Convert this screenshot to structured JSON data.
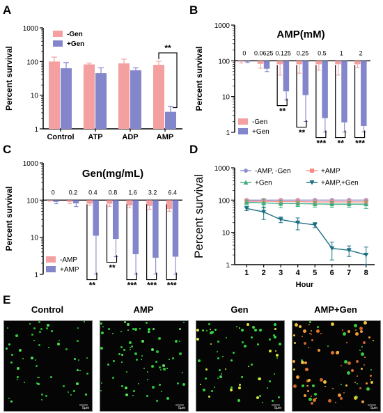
{
  "panel_labels": {
    "a": "A",
    "b": "B",
    "c": "C",
    "d": "D",
    "e": "E"
  },
  "colors": {
    "minus": "#f4a0a0",
    "plus": "#8486cc",
    "teal": "#1b6f83",
    "green": "#3fae7f",
    "lavender": "#8f8fd6",
    "salmon": "#f48a84",
    "axis": "#000000"
  },
  "chart_data": [
    {
      "panel": "A",
      "type": "bar",
      "ylabel": "Percent survival",
      "yscale": "log",
      "ylim": [
        1,
        1000
      ],
      "yticks": [
        "1",
        "10",
        "100",
        "1000"
      ],
      "categories": [
        "Control",
        "ATP",
        "ADP",
        "AMP"
      ],
      "series": [
        {
          "name": "-Gen",
          "values": [
            100,
            82,
            88,
            80
          ],
          "err": [
            35,
            8,
            30,
            22
          ]
        },
        {
          "name": "+Gen",
          "values": [
            63,
            45,
            55,
            3.2
          ],
          "err": [
            30,
            20,
            10,
            1.5
          ]
        }
      ],
      "annotations": [
        {
          "category": "AMP",
          "text": "**"
        }
      ],
      "legend": "top-left"
    },
    {
      "panel": "B",
      "type": "bar",
      "title": "AMP(mM)",
      "ylabel": "Percent survival",
      "yscale": "log",
      "ylim": [
        1,
        1000
      ],
      "yticks": [
        "1",
        "10",
        "100",
        "1000"
      ],
      "categories": [
        "0",
        "0.0625",
        "0.125",
        "0.25",
        "0.5",
        "1",
        "2"
      ],
      "series": [
        {
          "name": "-Gen",
          "values": [
            95,
            82,
            80,
            80,
            80,
            80,
            80
          ],
          "err": [
            8,
            20,
            40,
            35,
            25,
            40,
            15
          ]
        },
        {
          "name": "+Gen",
          "values": [
            95,
            60,
            14,
            11,
            2.5,
            1.9,
            1.5
          ],
          "err": [
            5,
            10,
            6,
            9,
            1.5,
            0.9,
            0.5
          ]
        }
      ],
      "annotations": [
        {
          "category": "0.125",
          "text": "**"
        },
        {
          "category": "0.25",
          "text": "**"
        },
        {
          "category": "0.5",
          "text": "***"
        },
        {
          "category": "1",
          "text": "**"
        },
        {
          "category": "2",
          "text": "***"
        }
      ],
      "legend": "bottom-left"
    },
    {
      "panel": "C",
      "type": "bar",
      "title": "Gen(mg/mL)",
      "ylabel": "Percent survival",
      "yscale": "log",
      "ylim": [
        1,
        1000
      ],
      "yticks": [
        "1",
        "10",
        "100",
        "1000"
      ],
      "categories": [
        "0",
        "0.2",
        "0.4",
        "0.8",
        "1.6",
        "3.2",
        "6.4"
      ],
      "series": [
        {
          "name": "-AMP",
          "values": [
            100,
            90,
            80,
            80,
            72,
            70,
            58
          ],
          "err": [
            6,
            10,
            8,
            12,
            10,
            14,
            8
          ]
        },
        {
          "name": "+AMP",
          "values": [
            90,
            82,
            11,
            9,
            3.5,
            2.8,
            3.0
          ],
          "err": [
            10,
            15,
            10,
            6,
            4,
            4,
            3.5
          ]
        }
      ],
      "annotations": [
        {
          "category": "0.4",
          "text": "**"
        },
        {
          "category": "0.8",
          "text": "**"
        },
        {
          "category": "1.6",
          "text": "***"
        },
        {
          "category": "3.2",
          "text": "***"
        },
        {
          "category": "6.4",
          "text": "***"
        }
      ],
      "legend": "bottom-left"
    },
    {
      "panel": "D",
      "type": "line",
      "xlabel": "Hour",
      "ylabel": "Percent survival",
      "yscale": "log",
      "ylim": [
        1,
        1000
      ],
      "yticks": [
        "1",
        "10",
        "100",
        "1000"
      ],
      "x": [
        1,
        2,
        3,
        4,
        5,
        6,
        7,
        8
      ],
      "series": [
        {
          "name": "-AMP, -Gen",
          "values": [
            100,
            100,
            100,
            100,
            100,
            100,
            100,
            100
          ],
          "err": [
            8,
            8,
            8,
            8,
            8,
            8,
            8,
            8
          ]
        },
        {
          "name": "+AMP",
          "values": [
            92,
            92,
            90,
            90,
            88,
            88,
            88,
            88
          ],
          "err": [
            15,
            20,
            15,
            15,
            15,
            15,
            15,
            15
          ]
        },
        {
          "name": "+Gen",
          "values": [
            85,
            82,
            78,
            78,
            76,
            75,
            75,
            75
          ],
          "err": [
            15,
            25,
            20,
            15,
            15,
            15,
            15,
            20
          ]
        },
        {
          "name": "+AMP,+Gen",
          "values": [
            55,
            43,
            25,
            20,
            17,
            3.2,
            2.8,
            2.0
          ],
          "err": [
            8,
            18,
            5,
            8,
            3,
            1.8,
            1.0,
            1.5
          ]
        }
      ],
      "legend": "top"
    }
  ],
  "micrographs": [
    {
      "title": "Control",
      "scale": "5μm"
    },
    {
      "title": "AMP",
      "scale": "5μm"
    },
    {
      "title": "Gen",
      "scale": "5μm"
    },
    {
      "title": "AMP+Gen",
      "scale": "5μm"
    }
  ]
}
